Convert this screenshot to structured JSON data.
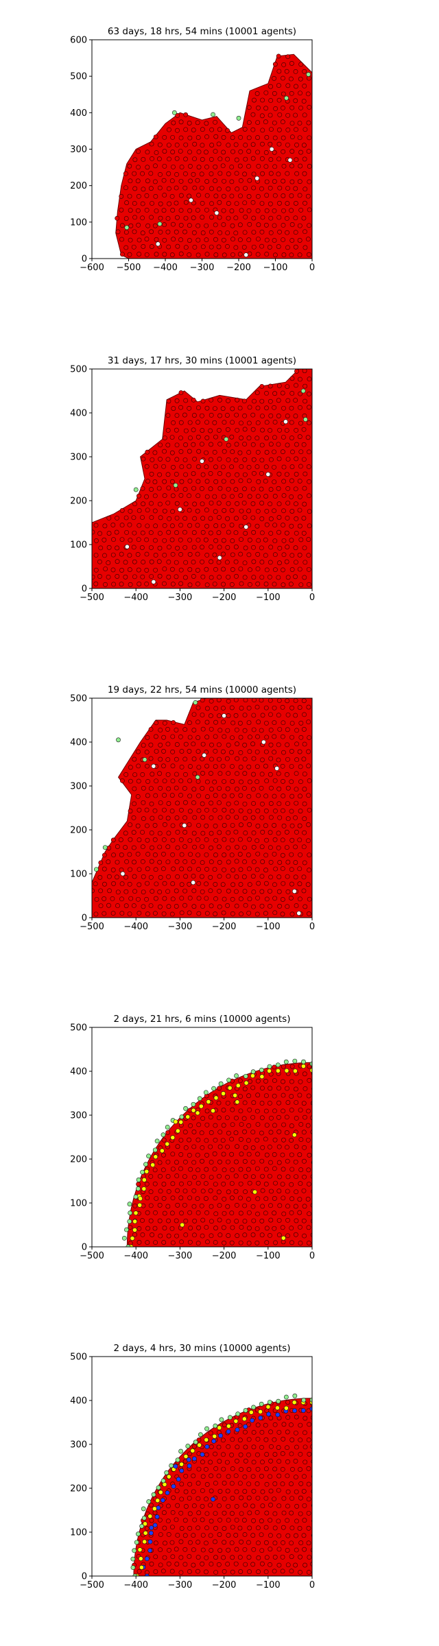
{
  "chart_data": [
    {
      "type": "scatter",
      "title": "63 days, 18 hrs, 54 mins (10001 agents)",
      "xlim": [
        -600,
        0
      ],
      "ylim": [
        0,
        600
      ],
      "x_ticks": [
        -600,
        -500,
        -400,
        -300,
        -200,
        -100,
        0
      ],
      "y_ticks": [
        0,
        100,
        200,
        300,
        400,
        500,
        600
      ],
      "x_tick_labels": [
        "−600",
        "−500",
        "−400",
        "−300",
        "−200",
        "−100",
        "0"
      ],
      "y_tick_labels": [
        "0",
        "100",
        "200",
        "300",
        "400",
        "500",
        "600"
      ],
      "xlabel": "",
      "ylabel": "",
      "grid": false,
      "colony_boundary": [
        [
          -520,
          10
        ],
        [
          -535,
          70
        ],
        [
          -530,
          130
        ],
        [
          -520,
          200
        ],
        [
          -505,
          260
        ],
        [
          -480,
          300
        ],
        [
          -440,
          320
        ],
        [
          -400,
          370
        ],
        [
          -360,
          400
        ],
        [
          -300,
          380
        ],
        [
          -260,
          390
        ],
        [
          -220,
          345
        ],
        [
          -190,
          360
        ],
        [
          -170,
          460
        ],
        [
          -120,
          480
        ],
        [
          -95,
          555
        ],
        [
          -50,
          560
        ],
        [
          0,
          510
        ],
        [
          0,
          0
        ],
        [
          -500,
          0
        ]
      ],
      "series": [
        {
          "color": "#ff0000",
          "points": []
        },
        {
          "color": "#90ee90",
          "points": [
            [
              -375,
              400
            ],
            [
              -270,
              395
            ],
            [
              -200,
              385
            ],
            [
              -415,
              95
            ],
            [
              -505,
              85
            ],
            [
              -10,
              505
            ],
            [
              -70,
              440
            ]
          ]
        },
        {
          "color": "#ffffff",
          "points": [
            [
              -110,
              300
            ],
            [
              -260,
              125
            ],
            [
              -420,
              40
            ],
            [
              -180,
              10
            ],
            [
              -60,
              270
            ],
            [
              -330,
              160
            ],
            [
              -150,
              220
            ]
          ]
        }
      ]
    },
    {
      "type": "scatter",
      "title": "31 days, 17 hrs, 30 mins (10001 agents)",
      "xlim": [
        -500,
        0
      ],
      "ylim": [
        0,
        500
      ],
      "x_ticks": [
        -500,
        -400,
        -300,
        -200,
        -100,
        0
      ],
      "y_ticks": [
        0,
        100,
        200,
        300,
        400,
        500
      ],
      "x_tick_labels": [
        "−500",
        "−400",
        "−300",
        "−200",
        "−100",
        "0"
      ],
      "y_tick_labels": [
        "0",
        "100",
        "200",
        "300",
        "400",
        "500"
      ],
      "xlabel": "",
      "ylabel": "",
      "grid": false,
      "colony_boundary": [
        [
          -500,
          0
        ],
        [
          -500,
          150
        ],
        [
          -450,
          170
        ],
        [
          -400,
          200
        ],
        [
          -380,
          250
        ],
        [
          -390,
          300
        ],
        [
          -340,
          340
        ],
        [
          -330,
          430
        ],
        [
          -290,
          450
        ],
        [
          -260,
          425
        ],
        [
          -210,
          440
        ],
        [
          -150,
          430
        ],
        [
          -120,
          460
        ],
        [
          -60,
          470
        ],
        [
          -30,
          500
        ],
        [
          0,
          500
        ],
        [
          0,
          0
        ]
      ],
      "series": [
        {
          "color": "#ff0000",
          "points": []
        },
        {
          "color": "#90ee90",
          "points": [
            [
              -400,
              225
            ],
            [
              -310,
              235
            ],
            [
              -195,
              340
            ],
            [
              -20,
              450
            ],
            [
              -15,
              385
            ]
          ]
        },
        {
          "color": "#ffffff",
          "points": [
            [
              -360,
              15
            ],
            [
              -210,
              70
            ],
            [
              -150,
              140
            ],
            [
              -250,
              290
            ],
            [
              -420,
              95
            ],
            [
              -60,
              380
            ],
            [
              -300,
              180
            ],
            [
              -100,
              260
            ]
          ]
        }
      ]
    },
    {
      "type": "scatter",
      "title": "19 days, 22 hrs, 54 mins (10000 agents)",
      "xlim": [
        -500,
        0
      ],
      "ylim": [
        0,
        500
      ],
      "x_ticks": [
        -500,
        -400,
        -300,
        -200,
        -100,
        0
      ],
      "y_ticks": [
        0,
        100,
        200,
        300,
        400,
        500
      ],
      "x_tick_labels": [
        "−500",
        "−400",
        "−300",
        "−200",
        "−100",
        "0"
      ],
      "y_tick_labels": [
        "0",
        "100",
        "200",
        "300",
        "400",
        "500"
      ],
      "xlabel": "",
      "ylabel": "",
      "grid": false,
      "colony_boundary": [
        [
          -500,
          0
        ],
        [
          -500,
          80
        ],
        [
          -470,
          150
        ],
        [
          -450,
          180
        ],
        [
          -420,
          220
        ],
        [
          -410,
          280
        ],
        [
          -440,
          320
        ],
        [
          -390,
          400
        ],
        [
          -355,
          450
        ],
        [
          -330,
          450
        ],
        [
          -290,
          440
        ],
        [
          -270,
          490
        ],
        [
          -240,
          500
        ],
        [
          0,
          500
        ],
        [
          0,
          0
        ]
      ],
      "series": [
        {
          "color": "#ff0000",
          "points": []
        },
        {
          "color": "#90ee90",
          "points": [
            [
              -265,
              490
            ],
            [
              -260,
              320
            ],
            [
              -440,
              405
            ],
            [
              -470,
              160
            ],
            [
              -490,
              110
            ],
            [
              -380,
              360
            ]
          ]
        },
        {
          "color": "#ffffff",
          "points": [
            [
              -360,
              345
            ],
            [
              -290,
              210
            ],
            [
              -245,
              370
            ],
            [
              -110,
              400
            ],
            [
              -200,
              460
            ],
            [
              -270,
              80
            ],
            [
              -40,
              60
            ],
            [
              -30,
              10
            ],
            [
              -80,
              340
            ],
            [
              -430,
              100
            ]
          ]
        }
      ]
    },
    {
      "type": "scatter",
      "title": "2 days, 21 hrs, 6 mins (10000 agents)",
      "xlim": [
        -500,
        0
      ],
      "ylim": [
        0,
        500
      ],
      "x_ticks": [
        -500,
        -400,
        -300,
        -200,
        -100,
        0
      ],
      "y_ticks": [
        0,
        100,
        200,
        300,
        400,
        500
      ],
      "x_tick_labels": [
        "−500",
        "−400",
        "−300",
        "−200",
        "−100",
        "0"
      ],
      "y_tick_labels": [
        "0",
        "100",
        "200",
        "300",
        "400",
        "500"
      ],
      "xlabel": "",
      "ylabel": "",
      "grid": false,
      "colony_radius": 420,
      "series": [
        {
          "color": "#ff0000",
          "points": []
        },
        {
          "color": "#ffff00",
          "points": [
            [
              -390,
              110
            ],
            [
              -295,
              50
            ],
            [
              -260,
              305
            ],
            [
              -175,
              345
            ],
            [
              -170,
              330
            ],
            [
              -130,
              125
            ],
            [
              -40,
              255
            ],
            [
              -65,
              20
            ],
            [
              -225,
              310
            ],
            [
              -310,
              285
            ]
          ]
        },
        {
          "color": "#90ee90",
          "points": []
        }
      ]
    },
    {
      "type": "scatter",
      "title": "2 days, 4 hrs, 30 mins (10000 agents)",
      "xlim": [
        -500,
        0
      ],
      "ylim": [
        0,
        500
      ],
      "x_ticks": [
        -500,
        -400,
        -300,
        -200,
        -100,
        0
      ],
      "y_ticks": [
        0,
        100,
        200,
        300,
        400,
        500
      ],
      "x_tick_labels": [
        "−500",
        "−400",
        "−300",
        "−200",
        "−100",
        "0"
      ],
      "y_tick_labels": [
        "0",
        "100",
        "200",
        "300",
        "400",
        "500"
      ],
      "xlabel": "",
      "ylabel": "",
      "grid": false,
      "colony_radius": 405,
      "series": [
        {
          "color": "#ff0000",
          "points": []
        },
        {
          "color": "#1e3cff",
          "points": [
            [
              -225,
              175
            ],
            [
              -365,
              110
            ],
            [
              -310,
              250
            ],
            [
              -280,
              265
            ]
          ]
        },
        {
          "color": "#ffff00",
          "points": []
        },
        {
          "color": "#90ee90",
          "points": []
        }
      ]
    }
  ]
}
